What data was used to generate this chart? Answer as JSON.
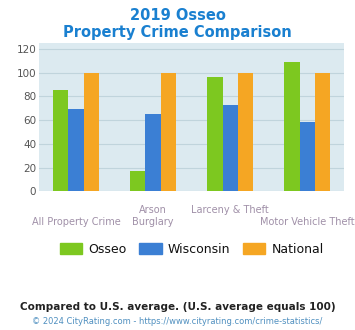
{
  "title_line1": "2019 Osseo",
  "title_line2": "Property Crime Comparison",
  "series": {
    "Osseo": [
      85,
      17,
      96,
      109
    ],
    "Wisconsin": [
      69,
      65,
      73,
      58
    ],
    "National": [
      100,
      100,
      100,
      100
    ]
  },
  "bar_colors": {
    "Osseo": "#7dc820",
    "Wisconsin": "#3b7fd4",
    "National": "#f5a623"
  },
  "ylim": [
    0,
    125
  ],
  "yticks": [
    0,
    20,
    40,
    60,
    80,
    100,
    120
  ],
  "xlabel_color": "#a090a8",
  "title_color": "#1a80d0",
  "grid_color": "#c0d4dc",
  "bg_color": "#dceaf0",
  "footnote1": "Compared to U.S. average. (U.S. average equals 100)",
  "footnote2": "© 2024 CityRating.com - https://www.cityrating.com/crime-statistics/",
  "footnote1_color": "#222222",
  "footnote2_color": "#5090c0",
  "legend_color": "#111111"
}
